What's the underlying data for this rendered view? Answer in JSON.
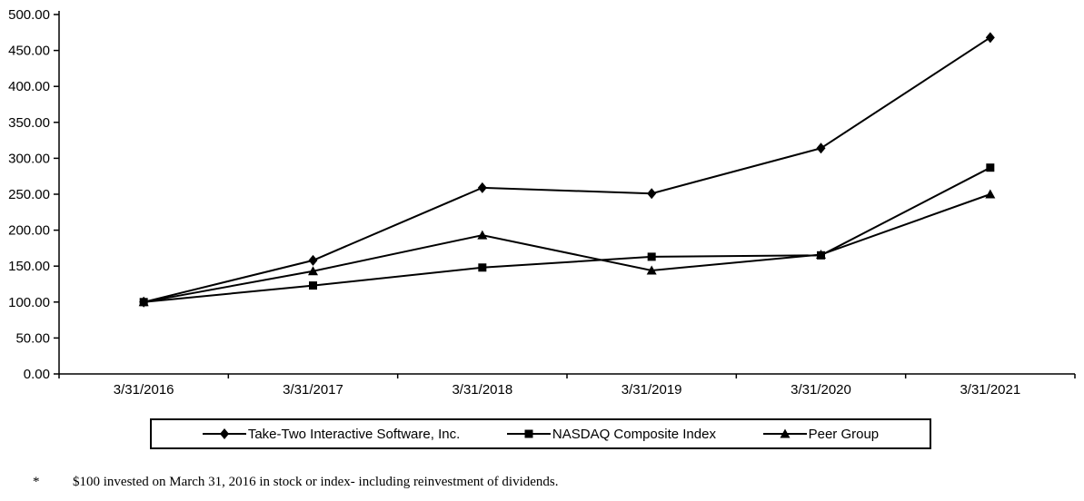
{
  "chart_data": {
    "type": "line",
    "categories": [
      "3/31/2016",
      "3/31/2017",
      "3/31/2018",
      "3/31/2019",
      "3/31/2020",
      "3/31/2021"
    ],
    "series": [
      {
        "name": "Take-Two Interactive Software, Inc.",
        "marker": "diamond",
        "values": [
          100,
          158,
          259,
          251,
          314,
          468
        ]
      },
      {
        "name": "NASDAQ Composite Index",
        "marker": "square",
        "values": [
          100,
          123,
          148,
          163,
          165,
          287
        ]
      },
      {
        "name": "Peer Group",
        "marker": "triangle",
        "values": [
          100,
          143,
          193,
          144,
          166,
          250
        ]
      }
    ],
    "title": "",
    "xlabel": "",
    "ylabel": "",
    "ylim": [
      0,
      500
    ],
    "ytick_step": 50,
    "ytick_decimals": 2,
    "grid": false,
    "legend_position": "bottom",
    "line_color": "#000000"
  },
  "footnote": {
    "marker": "*",
    "text": "$100 invested on March 31, 2016 in stock or index- including reinvestment of dividends."
  }
}
